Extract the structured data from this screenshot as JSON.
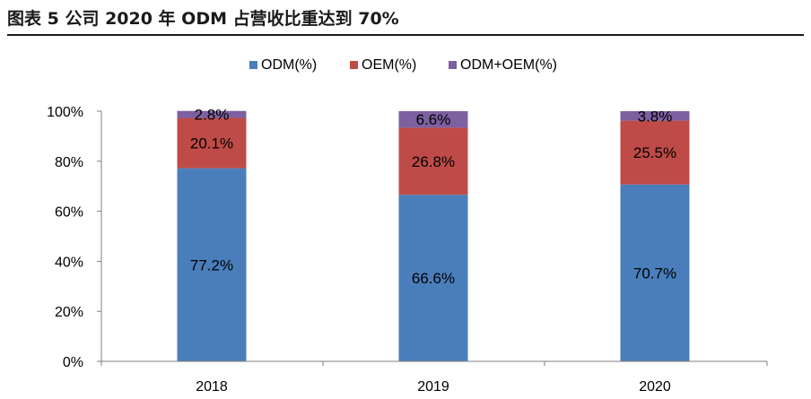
{
  "page_title": "图表 5 公司 2020 年 ODM 占营收比重达到 70%",
  "colors": {
    "ODM": "#4a7ebb",
    "OEM": "#be4b48",
    "ODM_OEM": "#7d60a0"
  },
  "chart_data": {
    "type": "bar",
    "stacked": true,
    "categories": [
      "2018",
      "2019",
      "2020"
    ],
    "series": [
      {
        "name": "ODM(%)",
        "values": [
          77.2,
          66.6,
          70.7
        ],
        "labels": [
          "77.2%",
          "66.6%",
          "70.7%"
        ]
      },
      {
        "name": "OEM(%)",
        "values": [
          20.1,
          26.8,
          25.5
        ],
        "labels": [
          "20.1%",
          "26.8%",
          "25.5%"
        ]
      },
      {
        "name": "ODM+OEM(%)",
        "values": [
          2.8,
          6.6,
          3.8
        ],
        "labels": [
          "2.8%",
          "6.6%",
          "3.8%"
        ]
      }
    ],
    "ylim": [
      0,
      100
    ],
    "yticks": [
      "0%",
      "20%",
      "40%",
      "60%",
      "80%",
      "100%"
    ],
    "legend": "top-center",
    "grid": false
  }
}
